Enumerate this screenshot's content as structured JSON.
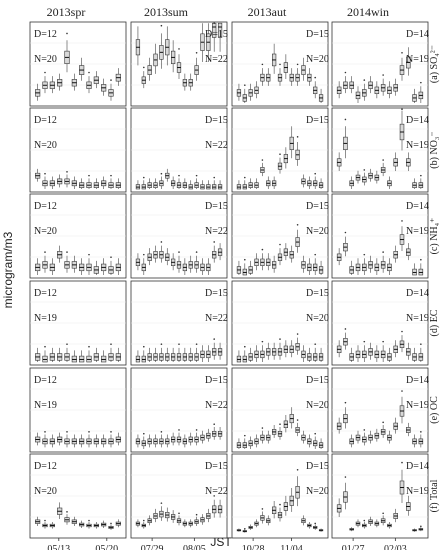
{
  "figure": {
    "ylabel": "microgram/m3",
    "xlabel": "JST",
    "seasons": [
      "2013spr",
      "2013sum",
      "2013aut",
      "2014win"
    ],
    "species_labels": [
      "(a) SO₄²⁻",
      "(b) NO₃⁻",
      "(c) NH₄⁺",
      "(d) EC",
      "(e) OC",
      "(f) Total"
    ],
    "x_ticks": [
      [
        "05/13",
        "05/20"
      ],
      [
        "07/29",
        "08/05"
      ],
      [
        "10/28",
        "11/04"
      ],
      [
        "01/27",
        "02/03"
      ]
    ],
    "d_labels": [
      [
        "D=12",
        "D=15",
        "D=15",
        "D=14"
      ],
      [
        "D=12",
        "D=15",
        "D=15",
        "D=14"
      ],
      [
        "D=12",
        "D=15",
        "D=15",
        "D=14"
      ],
      [
        "D=12",
        "D=15",
        "D=15",
        "D=14"
      ],
      [
        "D=12",
        "D=15",
        "D=15",
        "D=14"
      ],
      [
        "D=12",
        "D=15",
        "D=15",
        "D=14"
      ]
    ],
    "n_labels": [
      [
        "N=20",
        "N=22",
        "N=20",
        "N=19"
      ],
      [
        "N=20",
        "N=22",
        "",
        "N=19"
      ],
      [
        "N=20",
        "N=22",
        "N=20",
        "N=19"
      ],
      [
        "N=19",
        "N=22",
        "N=20",
        "N=19"
      ],
      [
        "N=19",
        "N=22",
        "N=20",
        "N=19"
      ],
      [
        "N=20",
        "N=22",
        "N=20",
        "N=19"
      ]
    ]
  },
  "chart_data": {
    "type": "box",
    "note": "box-and-whisker per day; values are box medians in microgram/m3 estimated from the figure; no tick labels on the y axes",
    "rows": [
      "SO4",
      "NO3",
      "NH4",
      "EC",
      "OC",
      "Total"
    ],
    "y_max": [
      15,
      20,
      15,
      15,
      20,
      80
    ],
    "medians": [
      [
        [
          2,
          3.5,
          3.5,
          4,
          9,
          4,
          6.5,
          3.5,
          4.5,
          3,
          2,
          5
        ],
        [
          11,
          4.5,
          6.5,
          8.5,
          10,
          11,
          9,
          7,
          4,
          4,
          6.5,
          12,
          12,
          15,
          15
        ],
        [
          2,
          1,
          2,
          2.5,
          5,
          5,
          8.5,
          5,
          7,
          5,
          5,
          6.5,
          5,
          2.5,
          1
        ],
        [
          2.5,
          3.5,
          3.5,
          1.5,
          2,
          3.5,
          2.5,
          3,
          2.5,
          3,
          6.5,
          8,
          1,
          1.5
        ]
      ],
      [
        [
          3.5,
          1.5,
          1.5,
          2,
          2,
          1.5,
          1,
          1,
          1,
          1.5,
          1,
          1
        ],
        [
          0.5,
          0.5,
          1,
          1,
          1.5,
          3.5,
          1.5,
          1,
          1,
          0.5,
          1,
          0.5,
          0.5,
          0.5,
          0.5
        ],
        [
          0.5,
          0.5,
          1,
          1,
          5,
          1.5,
          1.5,
          6,
          8,
          12,
          9,
          2,
          1.5,
          1.5,
          1
        ],
        [
          7,
          12,
          1.5,
          3,
          2.5,
          3.5,
          3,
          5,
          1.5,
          7,
          15,
          7,
          1,
          1
        ]
      ],
      [
        [
          1.5,
          2,
          1.5,
          4,
          2,
          2,
          1.5,
          1.5,
          1,
          1.5,
          1,
          1.5
        ],
        [
          2.5,
          1.5,
          3.5,
          4,
          4,
          3.5,
          2.5,
          2,
          1.5,
          2,
          2,
          1.5,
          1.5,
          4,
          4.5
        ],
        [
          1,
          0.5,
          1,
          2.5,
          2.5,
          2.5,
          2,
          3.5,
          4.5,
          4,
          6.5,
          2,
          1.5,
          1.5,
          1
        ],
        [
          3.5,
          5.5,
          1,
          1.5,
          1.5,
          2,
          1.5,
          2,
          1.5,
          4,
          7,
          4.5,
          0.5,
          0.5
        ]
      ],
      [
        [
          1,
          0.5,
          1,
          1,
          1,
          0.5,
          0.5,
          0.5,
          1,
          0.5,
          1,
          1
        ],
        [
          0.5,
          0.5,
          1,
          1,
          1,
          1,
          1,
          1,
          1,
          1,
          1,
          1.5,
          1.5,
          2,
          2
        ],
        [
          0.5,
          0.5,
          1,
          1.5,
          1.5,
          2,
          2,
          2,
          2.5,
          2.5,
          3,
          1.5,
          1,
          1,
          1
        ],
        [
          2.5,
          4,
          1,
          1.5,
          1.5,
          2,
          1.5,
          1.5,
          1,
          2.5,
          3.5,
          2,
          1,
          1
        ]
      ],
      [
        [
          2.5,
          2,
          2,
          2.5,
          2,
          2,
          2,
          2,
          2,
          2,
          2,
          2.5
        ],
        [
          2,
          1.5,
          2,
          2,
          2,
          2,
          2.5,
          2.5,
          2,
          2.5,
          2.5,
          3,
          3.5,
          4,
          4
        ],
        [
          1,
          1,
          1.5,
          2,
          3,
          3,
          4.5,
          4,
          6.5,
          8,
          5,
          3,
          2,
          1.5,
          1
        ],
        [
          6,
          8,
          2,
          3,
          2.5,
          3,
          3.5,
          4.5,
          3,
          6,
          10,
          5,
          2,
          2
        ]
      ],
      [
        [
          14,
          10,
          10,
          25,
          16,
          14,
          11,
          10,
          10,
          11,
          8,
          12
        ],
        [
          12,
          10,
          15,
          20,
          22,
          21,
          19,
          15,
          12,
          12,
          14,
          16,
          20,
          27,
          27
        ],
        [
          5,
          4,
          8,
          12,
          18,
          15,
          26,
          21,
          30,
          36,
          45,
          15,
          10,
          8,
          5
        ],
        [
          28,
          40,
          6,
          12,
          10,
          14,
          12,
          15,
          10,
          20,
          50,
          30,
          5,
          6
        ]
      ]
    ]
  }
}
